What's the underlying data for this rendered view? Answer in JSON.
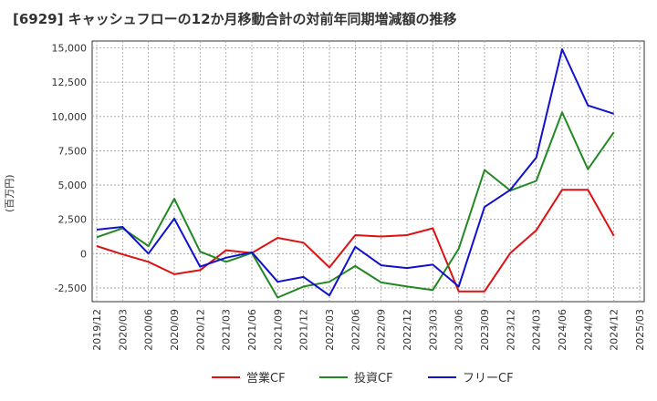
{
  "chart_data": {
    "type": "line",
    "title": "[6929]  キャッシュフローの12か月移動合計の対前年同期増減額の推移",
    "ylabel": "(百万円)",
    "xlabel": "",
    "ylim": [
      -3500,
      15500
    ],
    "yticks": [
      -2500,
      0,
      2500,
      5000,
      7500,
      10000,
      12500,
      15000
    ],
    "ytick_labels": [
      "-2,500",
      "0",
      "2,500",
      "5,000",
      "7,500",
      "10,000",
      "12,500",
      "15,000"
    ],
    "categories": [
      "2019/12",
      "2020/03",
      "2020/06",
      "2020/09",
      "2020/12",
      "2021/03",
      "2021/06",
      "2021/09",
      "2021/12",
      "2022/03",
      "2022/06",
      "2022/09",
      "2022/12",
      "2023/03",
      "2023/06",
      "2023/09",
      "2023/12",
      "2024/03",
      "2024/06",
      "2024/09",
      "2024/12",
      "2025/03"
    ],
    "grid": true,
    "legend_position": "bottom",
    "series": [
      {
        "name": "営業CF",
        "color": "#dd1111",
        "values": [
          550,
          -50,
          -600,
          -1500,
          -1200,
          250,
          50,
          1150,
          800,
          -1000,
          1350,
          1250,
          1350,
          1850,
          -2750,
          -2750,
          50,
          1700,
          4650,
          4650,
          1300,
          null
        ]
      },
      {
        "name": "投資CF",
        "color": "#228822",
        "values": [
          1200,
          1850,
          550,
          4000,
          150,
          -600,
          50,
          -3200,
          -2400,
          -2050,
          -900,
          -2100,
          -2400,
          -2650,
          350,
          6100,
          4600,
          5300,
          10300,
          6150,
          8850,
          null
        ]
      },
      {
        "name": "フリーCF",
        "color": "#1111cc",
        "values": [
          1750,
          1950,
          0,
          2550,
          -950,
          -300,
          100,
          -2050,
          -1700,
          -3050,
          500,
          -850,
          -1050,
          -800,
          -2400,
          3400,
          4650,
          7000,
          14900,
          10800,
          10200,
          null
        ]
      }
    ]
  }
}
